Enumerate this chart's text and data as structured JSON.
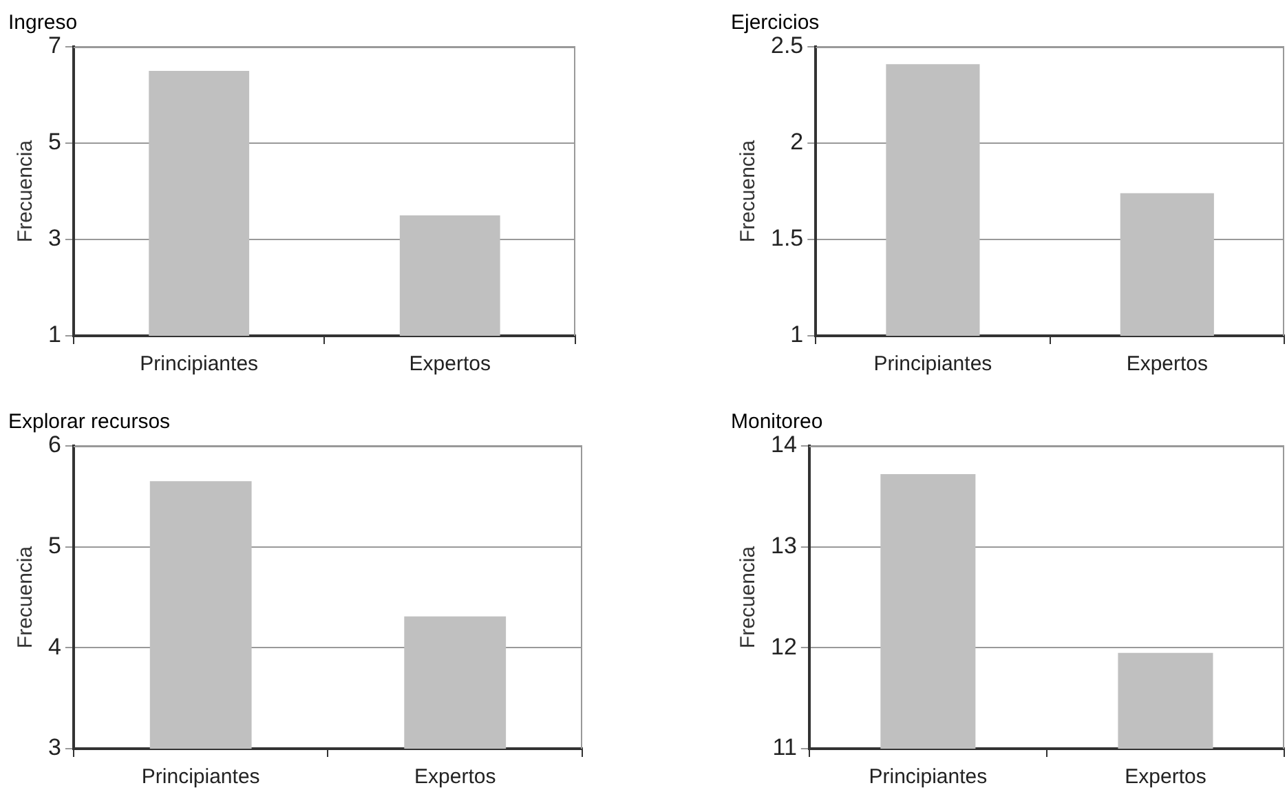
{
  "chart_data": [
    {
      "type": "bar",
      "title": "Ingreso",
      "ylabel": "Frecuencia",
      "categories": [
        "Principiantes",
        "Expertos"
      ],
      "values": [
        6.5,
        3.5
      ],
      "color": "#c0c0c0",
      "ylim": [
        1,
        7
      ],
      "yticks": [
        1,
        3,
        5,
        7
      ],
      "grid": "y"
    },
    {
      "type": "bar",
      "title": "Ejercicios",
      "ylabel": "Frecuencia",
      "categories": [
        "Principiantes",
        "Expertos"
      ],
      "values": [
        2.41,
        1.74
      ],
      "color": "#c0c0c0",
      "ylim": [
        1,
        2.5
      ],
      "yticks": [
        1,
        1.5,
        2,
        2.5
      ],
      "grid": "y"
    },
    {
      "type": "bar",
      "title": "Explorar recursos",
      "ylabel": "Frecuencia",
      "categories": [
        "Principiantes",
        "Expertos"
      ],
      "values": [
        5.65,
        4.31
      ],
      "color": "#c0c0c0",
      "ylim": [
        3,
        6
      ],
      "yticks": [
        3,
        4,
        5,
        6
      ],
      "grid": "y"
    },
    {
      "type": "bar",
      "title": "Monitoreo",
      "ylabel": "Frecuencia",
      "categories": [
        "Principiantes",
        "Expertos"
      ],
      "values": [
        13.72,
        11.95
      ],
      "color": "#c0c0c0",
      "ylim": [
        11,
        14
      ],
      "yticks": [
        11,
        12,
        13,
        14
      ],
      "grid": "y"
    }
  ]
}
